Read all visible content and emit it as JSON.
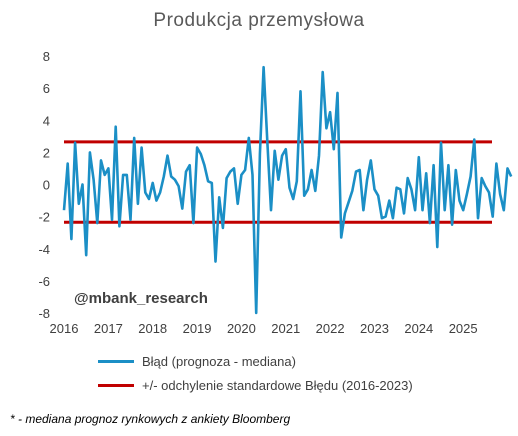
{
  "chart_data": {
    "type": "line",
    "title": "Produkcja przemysłowa",
    "xlabel": "",
    "ylabel": "",
    "ylim": [
      -8,
      8
    ],
    "xlim": [
      2016,
      2025.65
    ],
    "y_ticks": [
      "8",
      "6",
      "4",
      "2",
      "0",
      "-2",
      "-4",
      "-6",
      "-8"
    ],
    "x_ticks": [
      "2016",
      "2017",
      "2018",
      "2019",
      "2020",
      "2021",
      "2022",
      "2023",
      "2024",
      "2025"
    ],
    "grid": false,
    "legend_position": "bottom",
    "series": [
      {
        "name": "Błąd (prognoza - mediana)",
        "color": "#1b8fc6",
        "x_start": 2016.0,
        "x_step_months": 1,
        "values": [
          -1.6,
          1.3,
          -3.4,
          2.6,
          -1.2,
          0.0,
          -4.4,
          2.0,
          0.3,
          -2.4,
          1.5,
          0.6,
          1.0,
          -2.2,
          3.6,
          -2.6,
          0.6,
          0.6,
          -2.2,
          2.9,
          -1.2,
          2.3,
          -0.5,
          -0.9,
          0.1,
          -1.0,
          -0.5,
          0.5,
          1.8,
          0.5,
          0.3,
          -0.1,
          -1.5,
          0.8,
          1.2,
          -2.4,
          2.3,
          1.9,
          1.2,
          0.2,
          0.1,
          -4.8,
          -0.8,
          -2.7,
          0.4,
          0.8,
          1.0,
          -1.2,
          0.6,
          0.9,
          2.9,
          0.6,
          -8.0,
          1.9,
          7.3,
          2.7,
          -1.6,
          2.1,
          0.3,
          1.8,
          2.2,
          -0.2,
          -0.9,
          0.2,
          5.8,
          -0.7,
          -0.3,
          0.9,
          -0.4,
          1.8,
          7.0,
          3.5,
          4.5,
          2.2,
          5.7,
          -3.3,
          -1.8,
          -1.1,
          -0.4,
          0.8,
          0.9,
          -1.6,
          0.3,
          1.5,
          -0.3,
          -0.7,
          -2.1,
          -2.0,
          -1.0,
          -2.1,
          -0.2,
          -0.3,
          -1.8,
          0.4,
          -0.3,
          -1.6,
          1.7,
          -1.6,
          0.7,
          -2.4,
          1.2,
          -3.9,
          2.6,
          -1.6,
          1.2,
          -2.5,
          0.9,
          -1.0,
          -1.6,
          -0.6,
          0.5,
          2.8,
          -2.1,
          0.4,
          -0.1,
          -0.5,
          -2.0,
          1.3,
          -0.6,
          -1.6,
          1.0,
          0.5
        ]
      },
      {
        "name": "+/- odchylenie standardowe Błędu (2016-2023)",
        "color": "#c00000",
        "bands": [
          2.65,
          -2.35
        ]
      }
    ],
    "annotations": [
      "@mbank_research"
    ]
  },
  "footnote": "* - mediana prognoz rynkowych z ankiety Bloomberg"
}
